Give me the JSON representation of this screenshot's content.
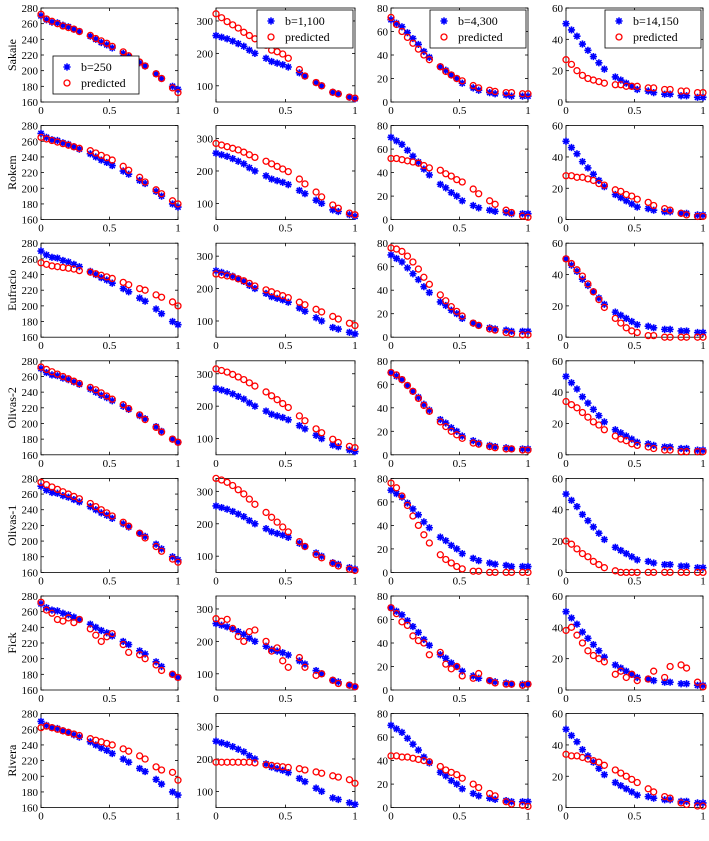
{
  "figure": {
    "rows": [
      "Sakaie",
      "Rokem",
      "Eufracio",
      "Olivas-2",
      "Olivas-1",
      "Fick",
      "Rivera"
    ],
    "columns": [
      "b=250",
      "b=1,100",
      "b=4,300",
      "b=14,150"
    ],
    "legend": {
      "measured": [
        "b=250",
        "b=1,100",
        "b=4,300",
        "b=14,150"
      ],
      "predicted": "predicted"
    },
    "colors": {
      "measured": "#0000ff",
      "predicted": "#ff0000"
    }
  },
  "chart_data": {
    "type": "scatter",
    "x_range": [
      0,
      1
    ],
    "x_ticks": [
      0,
      0.5,
      1
    ],
    "x_tick_labels": [
      "0",
      "0.5",
      "1"
    ],
    "column_axes": [
      {
        "ylim": [
          160,
          280
        ],
        "yticks": [
          160,
          180,
          200,
          220,
          240,
          260,
          280
        ]
      },
      {
        "ylim": [
          50,
          340
        ],
        "yticks": [
          100,
          200,
          300
        ]
      },
      {
        "ylim": [
          0,
          80
        ],
        "yticks": [
          0,
          20,
          40,
          60,
          80
        ]
      },
      {
        "ylim": [
          0,
          60
        ],
        "yticks": [
          0,
          20,
          40,
          60
        ]
      }
    ],
    "x": [
      0.0,
      0.04,
      0.08,
      0.12,
      0.16,
      0.2,
      0.24,
      0.28,
      0.36,
      0.4,
      0.44,
      0.48,
      0.52,
      0.6,
      0.64,
      0.72,
      0.76,
      0.84,
      0.88,
      0.96,
      1.0
    ],
    "measured": [
      [
        270,
        265,
        262,
        261,
        258,
        256,
        253,
        250,
        244,
        240,
        236,
        233,
        229,
        222,
        218,
        210,
        206,
        196,
        190,
        180,
        176
      ],
      [
        255,
        250,
        245,
        238,
        230,
        222,
        210,
        200,
        185,
        175,
        170,
        165,
        158,
        140,
        130,
        110,
        100,
        80,
        75,
        65,
        60
      ],
      [
        70,
        67,
        64,
        59,
        54,
        49,
        43,
        38,
        30,
        27,
        23,
        20,
        16,
        12,
        10,
        8,
        7,
        6,
        5,
        5,
        5
      ],
      [
        50,
        46,
        42,
        37,
        33,
        29,
        25,
        21,
        16,
        14,
        12,
        10,
        8,
        7,
        6,
        5,
        5,
        4,
        4,
        3,
        3
      ]
    ],
    "predicted": {
      "Sakaie": [
        [
          272,
          266,
          263,
          260,
          257,
          255,
          253,
          250,
          245,
          241,
          238,
          235,
          231,
          224,
          219,
          211,
          206,
          196,
          190,
          178,
          172
        ],
        [
          322,
          310,
          298,
          288,
          278,
          265,
          255,
          245,
          225,
          210,
          205,
          198,
          185,
          150,
          130,
          110,
          100,
          80,
          75,
          65,
          62
        ],
        [
          72,
          66,
          60,
          55,
          50,
          45,
          40,
          36,
          30,
          26,
          23,
          20,
          18,
          14,
          12,
          10,
          9,
          8,
          8,
          7,
          7
        ],
        [
          27,
          24,
          20,
          17,
          15,
          14,
          13,
          12,
          11,
          11,
          10,
          10,
          10,
          9,
          9,
          8,
          8,
          7,
          7,
          6,
          6
        ]
      ],
      "Rokem": [
        [
          265,
          263,
          261,
          259,
          257,
          255,
          253,
          251,
          248,
          245,
          242,
          239,
          236,
          228,
          223,
          214,
          208,
          198,
          193,
          184,
          180
        ],
        [
          285,
          280,
          275,
          270,
          265,
          258,
          250,
          242,
          230,
          222,
          214,
          206,
          198,
          175,
          160,
          135,
          120,
          95,
          85,
          70,
          65
        ],
        [
          52,
          52,
          51,
          50,
          49,
          48,
          46,
          44,
          42,
          39,
          37,
          34,
          32,
          26,
          22,
          16,
          13,
          8,
          6,
          3,
          2
        ],
        [
          28,
          28,
          27,
          27,
          26,
          25,
          23,
          22,
          19,
          18,
          16,
          15,
          13,
          11,
          9,
          7,
          6,
          4,
          3,
          2,
          2
        ]
      ],
      "Eufracio": [
        [
          255,
          253,
          251,
          250,
          249,
          248,
          247,
          245,
          243,
          241,
          239,
          237,
          235,
          230,
          227,
          222,
          220,
          214,
          211,
          205,
          200
        ],
        [
          245,
          242,
          239,
          236,
          230,
          224,
          216,
          208,
          196,
          190,
          184,
          178,
          172,
          158,
          150,
          136,
          128,
          114,
          106,
          93,
          86
        ],
        [
          76,
          75,
          73,
          69,
          64,
          58,
          51,
          45,
          36,
          31,
          26,
          22,
          18,
          12,
          10,
          7,
          6,
          4,
          3,
          2,
          2
        ],
        [
          50,
          47,
          43,
          39,
          34,
          29,
          24,
          19,
          12,
          9,
          6,
          4,
          3,
          1,
          1,
          0,
          0,
          0,
          0,
          0,
          0
        ]
      ],
      "Olivas-2": [
        [
          272,
          269,
          266,
          263,
          260,
          257,
          254,
          251,
          246,
          243,
          239,
          235,
          231,
          224,
          219,
          211,
          205,
          195,
          189,
          180,
          176
        ],
        [
          315,
          310,
          305,
          298,
          290,
          282,
          272,
          262,
          244,
          232,
          220,
          208,
          196,
          170,
          155,
          130,
          118,
          98,
          88,
          76,
          72
        ],
        [
          70,
          68,
          64,
          59,
          54,
          48,
          42,
          37,
          28,
          24,
          20,
          17,
          14,
          10,
          9,
          7,
          6,
          5,
          5,
          4,
          4
        ],
        [
          34,
          32,
          30,
          27,
          24,
          21,
          19,
          16,
          12,
          10,
          9,
          7,
          6,
          5,
          4,
          3,
          3,
          2,
          2,
          2,
          2
        ]
      ],
      "Olivas-1": [
        [
          275,
          272,
          269,
          266,
          263,
          260,
          257,
          254,
          248,
          244,
          240,
          236,
          232,
          224,
          219,
          210,
          204,
          193,
          187,
          177,
          173
        ],
        [
          340,
          335,
          328,
          318,
          305,
          292,
          276,
          260,
          235,
          220,
          205,
          190,
          175,
          145,
          130,
          105,
          95,
          78,
          70,
          60,
          56
        ],
        [
          76,
          72,
          65,
          57,
          48,
          40,
          32,
          25,
          15,
          11,
          8,
          5,
          3,
          1,
          1,
          0,
          0,
          0,
          0,
          0,
          0
        ],
        [
          20,
          18,
          15,
          12,
          10,
          7,
          5,
          3,
          1,
          0,
          0,
          0,
          0,
          0,
          0,
          0,
          0,
          0,
          0,
          0,
          0
        ]
      ],
      "Fick": [
        [
          272,
          262,
          258,
          250,
          248,
          252,
          246,
          250,
          238,
          230,
          222,
          228,
          232,
          218,
          208,
          205,
          200,
          192,
          185,
          180,
          176
        ],
        [
          270,
          262,
          268,
          240,
          215,
          200,
          230,
          235,
          200,
          170,
          180,
          140,
          120,
          150,
          120,
          95,
          100,
          80,
          70,
          65,
          60
        ],
        [
          70,
          65,
          58,
          55,
          46,
          42,
          40,
          30,
          32,
          22,
          18,
          20,
          12,
          10,
          14,
          8,
          6,
          5,
          5,
          4,
          5
        ],
        [
          38,
          40,
          35,
          30,
          25,
          22,
          20,
          18,
          10,
          12,
          8,
          10,
          6,
          7,
          12,
          8,
          15,
          16,
          14,
          5,
          2
        ]
      ],
      "Rivera": [
        [
          262,
          264,
          262,
          260,
          258,
          256,
          254,
          252,
          248,
          246,
          244,
          242,
          240,
          235,
          232,
          226,
          222,
          212,
          208,
          205,
          195
        ],
        [
          190,
          190,
          190,
          190,
          190,
          190,
          190,
          188,
          182,
          180,
          178,
          176,
          174,
          170,
          166,
          160,
          156,
          148,
          144,
          136,
          125
        ],
        [
          44,
          44,
          43,
          43,
          42,
          41,
          40,
          39,
          35,
          32,
          30,
          28,
          25,
          20,
          17,
          12,
          10,
          5,
          3,
          2,
          1
        ],
        [
          34,
          33,
          33,
          32,
          31,
          30,
          29,
          27,
          24,
          22,
          20,
          18,
          16,
          12,
          10,
          7,
          6,
          3,
          2,
          1,
          1
        ]
      ]
    }
  }
}
